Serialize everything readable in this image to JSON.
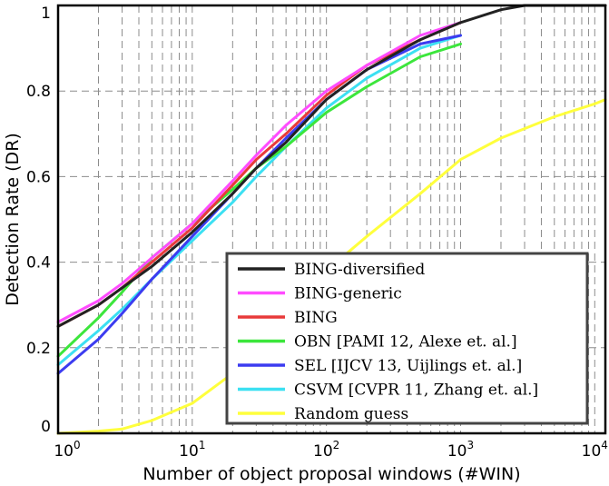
{
  "chart_data": {
    "type": "line",
    "title": "",
    "xlabel": "Number of object proposal windows (#WIN)",
    "ylabel": "Detection Rate (DR)",
    "xscale": "log",
    "xlim": [
      1,
      12000
    ],
    "ylim": [
      0,
      1
    ],
    "grid": true,
    "legend_position": "bottom-right",
    "x_tick_labels": [
      {
        "value": 1,
        "base": "10",
        "exp": "0"
      },
      {
        "value": 10,
        "base": "10",
        "exp": "1"
      },
      {
        "value": 100,
        "base": "10",
        "exp": "2"
      },
      {
        "value": 1000,
        "base": "10",
        "exp": "3"
      },
      {
        "value": 10000,
        "base": "10",
        "exp": "4"
      }
    ],
    "y_ticks": [
      {
        "value": 0,
        "label": "0"
      },
      {
        "value": 0.2,
        "label": "0.2"
      },
      {
        "value": 0.4,
        "label": "0.4"
      },
      {
        "value": 0.6,
        "label": "0.6"
      },
      {
        "value": 0.8,
        "label": "0.8"
      },
      {
        "value": 1,
        "label": "1"
      }
    ],
    "series": [
      {
        "name": "BING-diversified",
        "color": "#222222",
        "x": [
          1,
          2,
          3,
          5,
          10,
          20,
          30,
          50,
          100,
          200,
          500,
          1000,
          2000,
          3000,
          5000,
          10000,
          12000
        ],
        "y": [
          0.25,
          0.3,
          0.34,
          0.39,
          0.47,
          0.56,
          0.62,
          0.68,
          0.78,
          0.85,
          0.92,
          0.96,
          0.99,
          1.0,
          1.0,
          1.0,
          1.0
        ]
      },
      {
        "name": "BING-generic",
        "color": "#ff4cff",
        "x": [
          1,
          2,
          3,
          5,
          10,
          20,
          30,
          50,
          100,
          200,
          500,
          1000
        ],
        "y": [
          0.26,
          0.31,
          0.35,
          0.41,
          0.49,
          0.59,
          0.65,
          0.72,
          0.8,
          0.86,
          0.93,
          0.96
        ]
      },
      {
        "name": "BING",
        "color": "#e83a3a",
        "x": [
          1,
          2,
          3,
          5,
          10,
          20,
          30,
          50,
          100,
          200,
          500,
          1000
        ],
        "y": [
          0.25,
          0.3,
          0.34,
          0.4,
          0.48,
          0.58,
          0.64,
          0.7,
          0.79,
          0.86,
          0.92,
          0.96
        ]
      },
      {
        "name": "OBN [PAMI 12, Alexe et. al.]",
        "color": "#3ce63c",
        "x": [
          1,
          2,
          3,
          5,
          10,
          20,
          30,
          50,
          100,
          200,
          500,
          1000
        ],
        "y": [
          0.18,
          0.27,
          0.33,
          0.41,
          0.49,
          0.57,
          0.62,
          0.67,
          0.75,
          0.81,
          0.88,
          0.91
        ]
      },
      {
        "name": "SEL [IJCV 13, Uijlings et. al.]",
        "color": "#3c3cf0",
        "x": [
          1,
          2,
          3,
          5,
          10,
          20,
          30,
          50,
          100,
          200,
          500,
          1000
        ],
        "y": [
          0.14,
          0.22,
          0.28,
          0.36,
          0.46,
          0.56,
          0.62,
          0.69,
          0.78,
          0.85,
          0.91,
          0.93
        ]
      },
      {
        "name": "CSVM [CVPR 11, Zhang et. al.]",
        "color": "#3ce0f2",
        "x": [
          1,
          2,
          3,
          5,
          10,
          20,
          30,
          50,
          100,
          200,
          500,
          1000
        ],
        "y": [
          0.16,
          0.24,
          0.29,
          0.36,
          0.45,
          0.54,
          0.6,
          0.67,
          0.76,
          0.83,
          0.9,
          0.93
        ]
      },
      {
        "name": "Random guess",
        "color": "#ffff3c",
        "x": [
          1,
          2,
          3,
          5,
          10,
          20,
          30,
          50,
          100,
          200,
          500,
          1000,
          2000,
          5000,
          10000,
          12000
        ],
        "y": [
          0.0,
          0.005,
          0.01,
          0.03,
          0.07,
          0.14,
          0.2,
          0.28,
          0.38,
          0.46,
          0.56,
          0.64,
          0.69,
          0.74,
          0.77,
          0.78
        ]
      }
    ]
  }
}
